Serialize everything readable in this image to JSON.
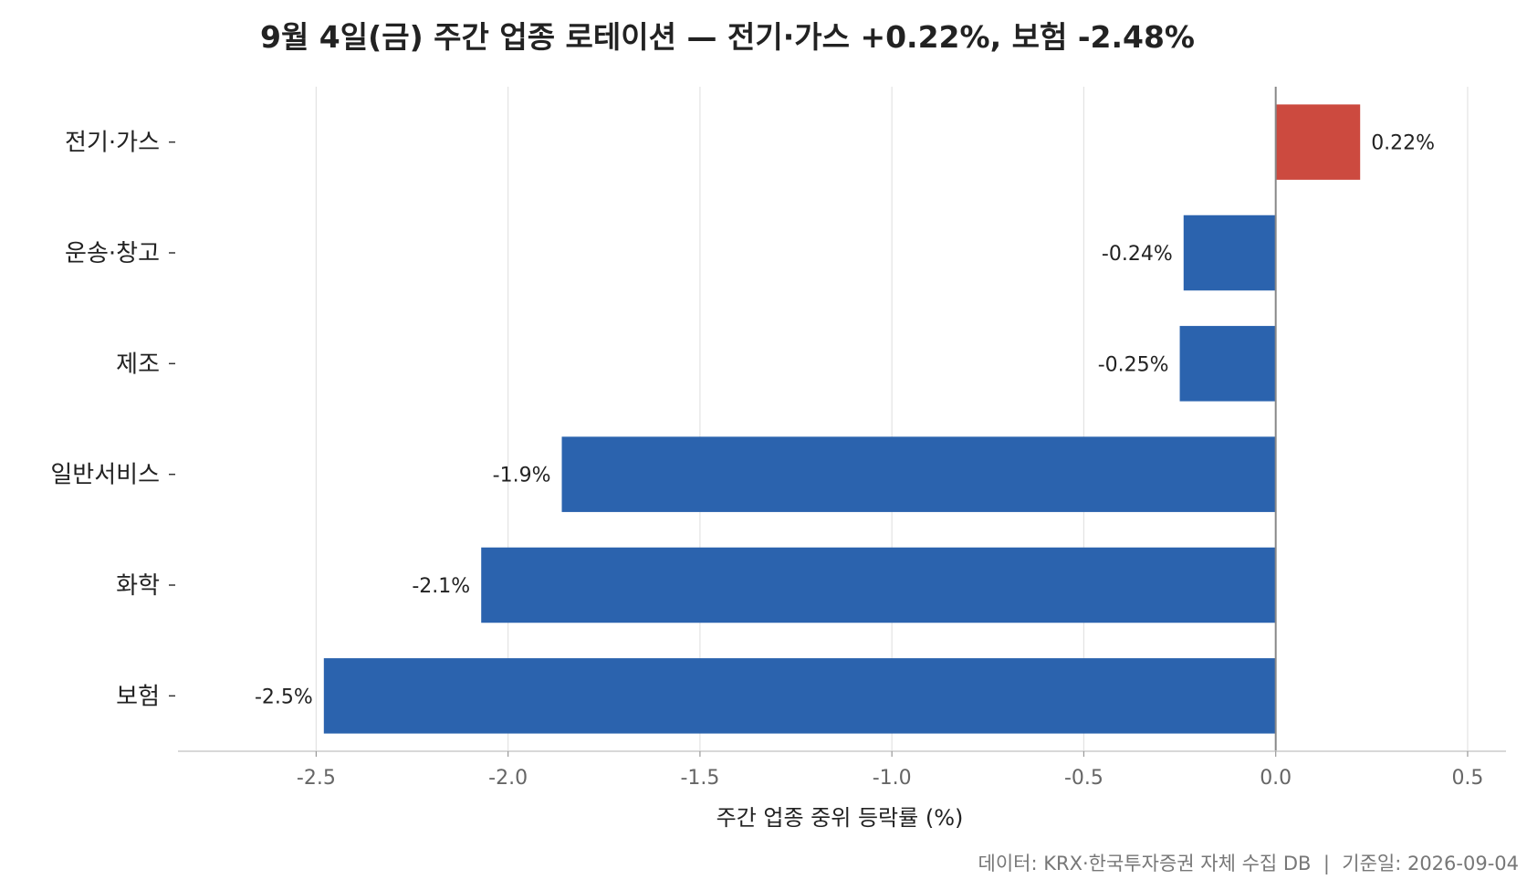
{
  "chart_data": {
    "type": "bar",
    "orientation": "horizontal",
    "title": "9월 4일(금) 주간 업종 로테이션 — 전기·가스 +0.22%, 보험 -2.48%",
    "xlabel": "주간 업종 중위 등락률 (%)",
    "categories": [
      "전기·가스",
      "운송·창고",
      "제조",
      "일반서비스",
      "화학",
      "보험"
    ],
    "values": [
      0.22,
      -0.24,
      -0.25,
      -1.86,
      -2.07,
      -2.48
    ],
    "value_labels": [
      "0.22%",
      "-0.24%",
      "-0.25%",
      "-1.9%",
      "-2.1%",
      "-2.5%"
    ],
    "xlim": [
      -2.86,
      0.6
    ],
    "xticks": [
      -2.5,
      -2.0,
      -1.5,
      -1.0,
      -0.5,
      0.0,
      0.5
    ],
    "xtick_labels": [
      "-2.5",
      "-2.0",
      "-1.5",
      "-1.0",
      "-0.5",
      "0.0",
      "0.5"
    ],
    "grid": "vertical",
    "colors": {
      "positive": "#CC4A3F",
      "negative": "#2B63AE",
      "grid": "#E3E3E3",
      "zero_line": "#888888"
    }
  },
  "footer": "데이터: KRX·한국투자증권 자체 수집 DB  |  기준일: 2026-09-04"
}
